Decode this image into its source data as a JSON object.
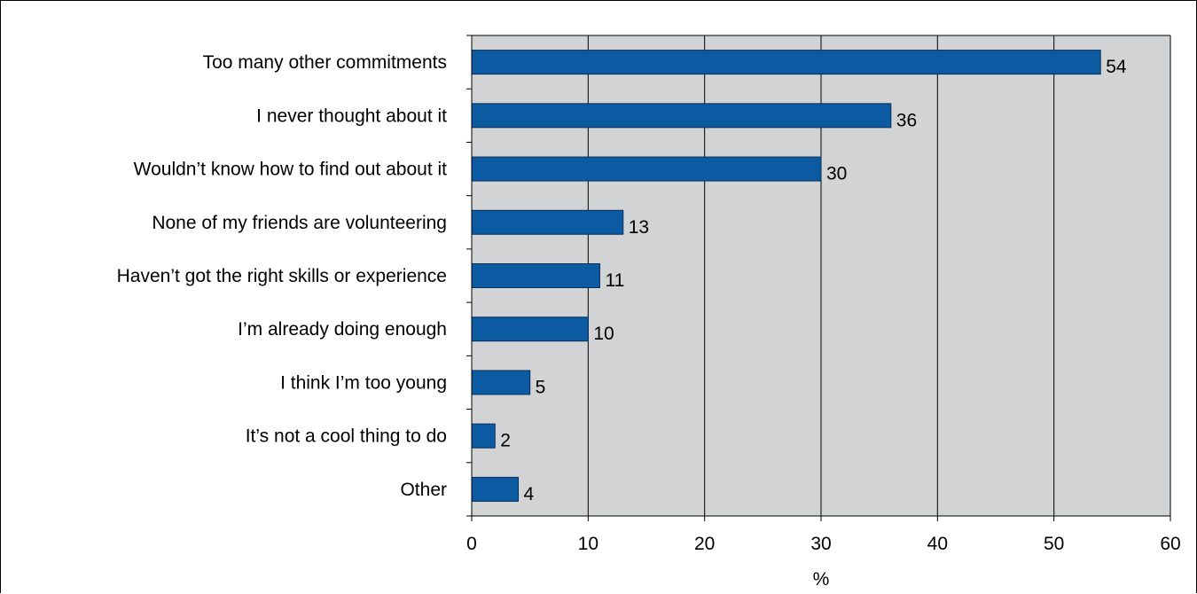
{
  "chart_data": {
    "type": "bar",
    "orientation": "horizontal",
    "categories": [
      "Too many other commitments",
      "I never thought about it",
      "Wouldn’t know how to find out about it",
      "None of my friends are volunteering",
      "Haven’t got the right skills or experience",
      "I’m already doing enough",
      "I think I’m too young",
      "It’s not a cool thing to do",
      "Other"
    ],
    "values": [
      54,
      36,
      30,
      13,
      11,
      10,
      5,
      2,
      4
    ],
    "value_labels": [
      "54",
      "36",
      "30",
      "13",
      "11",
      "10",
      "5",
      "2",
      "4"
    ],
    "xlabel": "%",
    "xlim": [
      0,
      60
    ],
    "xticks": [
      0,
      10,
      20,
      30,
      40,
      50,
      60
    ],
    "xtick_labels": [
      "0",
      "10",
      "20",
      "30",
      "40",
      "50",
      "60"
    ],
    "grid": true,
    "legend": "none",
    "colors": {
      "bar": "#0b5aa2",
      "bar_border": "#0a2f5a",
      "plot_background": "#d1d3d4",
      "grid": "#000000"
    }
  }
}
